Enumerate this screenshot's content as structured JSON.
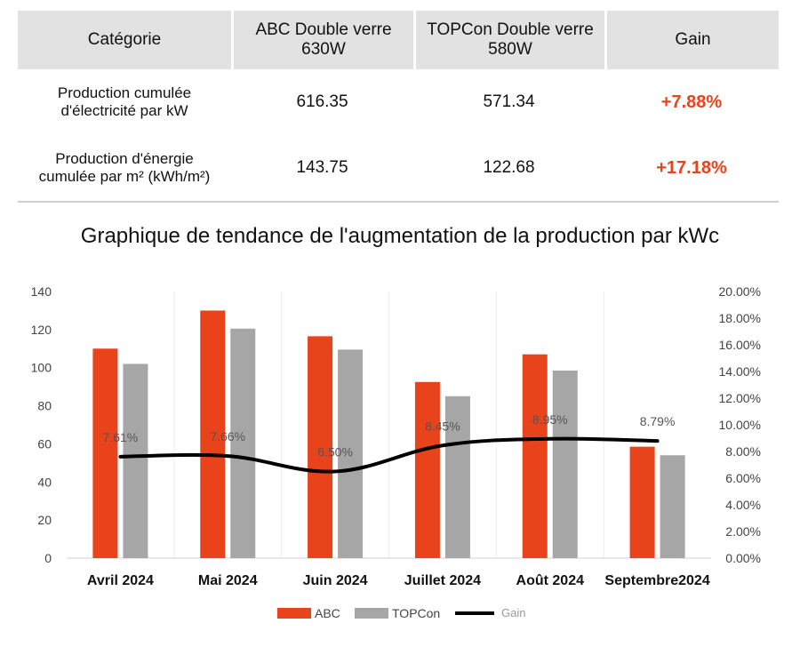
{
  "table": {
    "headers": [
      "Catégorie",
      "ABC Double verre\n630W",
      "TOPCon Double verre\n580W",
      "Gain"
    ],
    "rows": [
      {
        "label_line1": "Production cumulée",
        "label_line2": "d'électricité par kW",
        "abc": "616.35",
        "topcon": "571.34",
        "gain": "+7.88%"
      },
      {
        "label_line1": "Production d'énergie",
        "label_line2": "cumulée par m² (kWh/m²)",
        "abc": "143.75",
        "topcon": "122.68",
        "gain": "+17.18%"
      }
    ]
  },
  "chart_data": {
    "type": "bar",
    "title": "Graphique de tendance de l'augmentation de la production par kWc",
    "categories": [
      "Avril 2024",
      "Mai 2024",
      "Juin 2024",
      "Juillet 2024",
      "Août 2024",
      "Septembre2024"
    ],
    "series": [
      {
        "name": "ABC",
        "type": "bar",
        "axis": "left",
        "color": "#e8431b",
        "values": [
          110,
          130,
          116.5,
          92.5,
          107,
          58.5
        ]
      },
      {
        "name": "TOPCon",
        "type": "bar",
        "axis": "left",
        "color": "#a6a6a6",
        "values": [
          102,
          120.5,
          109.5,
          85,
          98.5,
          54
        ]
      },
      {
        "name": "Gain",
        "type": "line",
        "axis": "right",
        "color": "#000000",
        "values": [
          7.61,
          7.66,
          6.5,
          8.45,
          8.95,
          8.79
        ],
        "labels": [
          "7.61%",
          "7.66%",
          "6.50%",
          "8.45%",
          "8.95%",
          "8.79%"
        ]
      }
    ],
    "y_left": {
      "min": 0,
      "max": 140,
      "ticks": [
        "0",
        "20",
        "40",
        "60",
        "80",
        "100",
        "120",
        "140"
      ]
    },
    "y_right": {
      "min": 0,
      "max": 20,
      "ticks": [
        "0.00%",
        "2.00%",
        "4.00%",
        "6.00%",
        "8.00%",
        "10.00%",
        "12.00%",
        "14.00%",
        "16.00%",
        "18.00%",
        "20.00%"
      ]
    },
    "grid": "vertical-light",
    "legend": "bottom-center"
  }
}
